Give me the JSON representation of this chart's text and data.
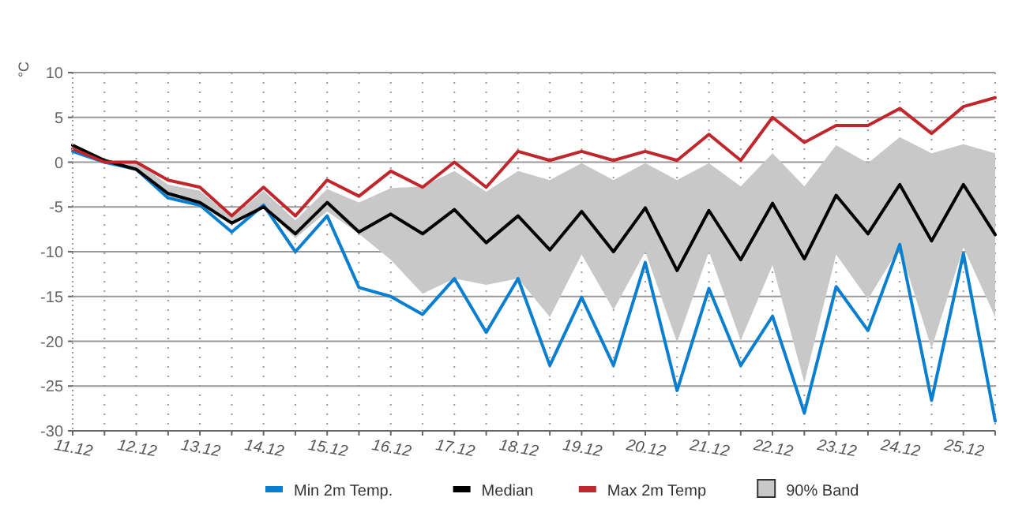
{
  "chart_data": {
    "type": "line",
    "ylabel": "°C",
    "categories": [
      "11.12",
      null,
      "12.12",
      null,
      "13.12",
      null,
      "14.12",
      null,
      "15.12",
      null,
      "16.12",
      null,
      "17.12",
      null,
      "18.12",
      null,
      "19.12",
      null,
      "20.12",
      null,
      "21.12",
      null,
      "22.12",
      null,
      "23.12",
      null,
      "24.12",
      null,
      "25.12",
      null
    ],
    "ylim": [
      -30,
      10
    ],
    "yticks": [
      -30,
      -25,
      -20,
      -15,
      -10,
      -5,
      0,
      5,
      10
    ],
    "grid": true,
    "legend": "bottom",
    "marker": "none",
    "line_style": "solid",
    "annotations": [
      "90% Band"
    ],
    "series": [
      {
        "name": "Min  2m Temp.",
        "color": "#0a7fd0",
        "values": [
          1.2,
          0,
          -0.8,
          -4,
          -4.8,
          -7.8,
          -4.8,
          -10,
          -6,
          -14,
          -15,
          -17,
          -13,
          -19,
          -13,
          -22.7,
          -15.1,
          -22.7,
          -11.2,
          -25.5,
          -14.1,
          -22.7,
          -17.2,
          -28,
          -13.9,
          -18.8,
          -9.2,
          -26.6,
          -10.2,
          -28.9
        ]
      },
      {
        "name": "Median",
        "color": "#000000",
        "values": [
          1.9,
          0.2,
          -0.8,
          -3.5,
          -4.5,
          -6.8,
          -5,
          -8,
          -4.5,
          -7.8,
          -5.8,
          -8,
          -5.3,
          -9,
          -6,
          -9.8,
          -5.5,
          -10,
          -5.1,
          -12.1,
          -5.4,
          -10.9,
          -4.6,
          -10.8,
          -3.7,
          -8,
          -2.5,
          -8.8,
          -2.5,
          -8.1
        ],
        "upper": [
          1.9,
          0.2,
          0,
          -2.5,
          -3.2,
          -6.2,
          -3.2,
          -6.5,
          -3,
          -4.5,
          -2.9,
          -2.7,
          -1,
          -3.3,
          -1,
          -2,
          -0.1,
          -2,
          -0.1,
          -2,
          -0.1,
          -2.7,
          1,
          -2.7,
          1.9,
          -0.1,
          2.8,
          1,
          2,
          1
        ],
        "lower": [
          1.5,
          0,
          -0.8,
          -4,
          -4.8,
          -7,
          -5,
          -8.5,
          -5.5,
          -8,
          -10.9,
          -14.7,
          -13,
          -13.7,
          -13,
          -17.3,
          -10.3,
          -16.5,
          -10,
          -20.1,
          -10,
          -19.9,
          -11.5,
          -24.6,
          -10.3,
          -15.3,
          -9.5,
          -20.8,
          -9.5,
          -17.3
        ]
      },
      {
        "name": "Max  2m Temp",
        "color": "#c0272d",
        "values": [
          1.5,
          0,
          0,
          -2,
          -2.8,
          -6,
          -2.8,
          -6,
          -2,
          -3.8,
          -1,
          -2.8,
          0,
          -2.8,
          1.2,
          0.2,
          1.2,
          0.2,
          1.2,
          0.2,
          3.1,
          0.2,
          5,
          2.2,
          4.1,
          4.1,
          6,
          3.2,
          6.2,
          7.2
        ]
      }
    ]
  }
}
